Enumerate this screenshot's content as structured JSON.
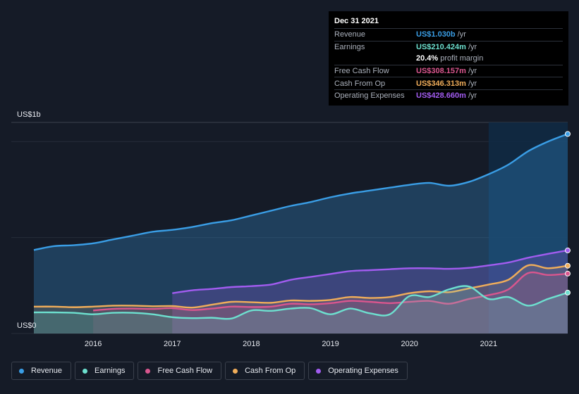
{
  "tooltip": {
    "date": "Dec 31 2021",
    "rows": [
      {
        "label": "Revenue",
        "value": "US$1.030b",
        "unit": "/yr",
        "color": "#3a9ee6"
      },
      {
        "label": "Earnings",
        "value": "US$210.424m",
        "unit": "/yr",
        "color": "#6de0cf"
      },
      {
        "label": "",
        "value": "20.4%",
        "unit": "profit margin",
        "color": "#ffffff"
      },
      {
        "label": "Free Cash Flow",
        "value": "US$308.157m",
        "unit": "/yr",
        "color": "#d9568e"
      },
      {
        "label": "Cash From Op",
        "value": "US$346.313m",
        "unit": "/yr",
        "color": "#f0ad5a"
      },
      {
        "label": "Operating Expenses",
        "value": "US$428.660m",
        "unit": "/yr",
        "color": "#a25cf0"
      }
    ]
  },
  "legend": [
    {
      "label": "Revenue",
      "color": "#3a9ee6"
    },
    {
      "label": "Earnings",
      "color": "#6de0cf"
    },
    {
      "label": "Free Cash Flow",
      "color": "#d9568e"
    },
    {
      "label": "Cash From Op",
      "color": "#f0ad5a"
    },
    {
      "label": "Operating Expenses",
      "color": "#a25cf0"
    }
  ],
  "chart_data": {
    "type": "area",
    "y_axis_top_label": "US$1b",
    "y_axis_bottom_label": "US$0",
    "ylim": [
      0,
      1.1
    ],
    "xlim": [
      2015.25,
      2022.0
    ],
    "x_ticks": [
      2016,
      2017,
      2018,
      2019,
      2020,
      2021
    ],
    "x_tick_labels": [
      "2016",
      "2017",
      "2018",
      "2019",
      "2020",
      "2021"
    ],
    "highlight_from": 2021.0,
    "series": [
      {
        "name": "Revenue",
        "color": "#3a9ee6",
        "fill": true,
        "x": [
          2015.25,
          2015.5,
          2015.75,
          2016.0,
          2016.25,
          2016.5,
          2016.75,
          2017.0,
          2017.25,
          2017.5,
          2017.75,
          2018.0,
          2018.25,
          2018.5,
          2018.75,
          2019.0,
          2019.25,
          2019.5,
          2019.75,
          2020.0,
          2020.25,
          2020.5,
          2020.75,
          2021.0,
          2021.25,
          2021.5,
          2021.75,
          2022.0
        ],
        "y": [
          0.435,
          0.455,
          0.46,
          0.47,
          0.49,
          0.51,
          0.53,
          0.54,
          0.555,
          0.575,
          0.59,
          0.615,
          0.64,
          0.665,
          0.685,
          0.71,
          0.73,
          0.745,
          0.76,
          0.775,
          0.785,
          0.77,
          0.79,
          0.83,
          0.88,
          0.95,
          1.0,
          1.04
        ]
      },
      {
        "name": "Operating Expenses",
        "color": "#a25cf0",
        "fill": true,
        "x": [
          2017.0,
          2017.25,
          2017.5,
          2017.75,
          2018.0,
          2018.25,
          2018.5,
          2018.75,
          2019.0,
          2019.25,
          2019.5,
          2019.75,
          2020.0,
          2020.25,
          2020.5,
          2020.75,
          2021.0,
          2021.25,
          2021.5,
          2021.75,
          2022.0
        ],
        "y": [
          0.21,
          0.225,
          0.232,
          0.242,
          0.247,
          0.255,
          0.28,
          0.295,
          0.31,
          0.325,
          0.33,
          0.335,
          0.34,
          0.34,
          0.337,
          0.342,
          0.355,
          0.37,
          0.395,
          0.415,
          0.433
        ]
      },
      {
        "name": "Cash From Op",
        "color": "#f0ad5a",
        "fill": true,
        "x": [
          2015.25,
          2015.5,
          2015.75,
          2016.0,
          2016.25,
          2016.5,
          2016.75,
          2017.0,
          2017.25,
          2017.5,
          2017.75,
          2018.0,
          2018.25,
          2018.5,
          2018.75,
          2019.0,
          2019.25,
          2019.5,
          2019.75,
          2020.0,
          2020.25,
          2020.5,
          2020.75,
          2021.0,
          2021.25,
          2021.5,
          2021.75,
          2022.0
        ],
        "y": [
          0.14,
          0.14,
          0.137,
          0.14,
          0.145,
          0.145,
          0.142,
          0.143,
          0.135,
          0.15,
          0.165,
          0.163,
          0.16,
          0.172,
          0.17,
          0.175,
          0.19,
          0.185,
          0.19,
          0.21,
          0.22,
          0.215,
          0.235,
          0.255,
          0.28,
          0.355,
          0.34,
          0.353
        ]
      },
      {
        "name": "Free Cash Flow",
        "color": "#d9568e",
        "fill": true,
        "x": [
          2016.0,
          2016.25,
          2016.5,
          2016.75,
          2017.0,
          2017.25,
          2017.5,
          2017.75,
          2018.0,
          2018.25,
          2018.5,
          2018.75,
          2019.0,
          2019.25,
          2019.5,
          2019.75,
          2020.0,
          2020.25,
          2020.5,
          2020.75,
          2021.0,
          2021.25,
          2021.5,
          2021.75,
          2022.0
        ],
        "y": [
          0.12,
          0.128,
          0.13,
          0.128,
          0.132,
          0.122,
          0.13,
          0.14,
          0.138,
          0.14,
          0.155,
          0.152,
          0.158,
          0.17,
          0.165,
          0.158,
          0.165,
          0.17,
          0.155,
          0.18,
          0.2,
          0.23,
          0.315,
          0.305,
          0.312
        ]
      },
      {
        "name": "Earnings",
        "color": "#6de0cf",
        "fill": true,
        "x": [
          2015.25,
          2015.5,
          2015.75,
          2016.0,
          2016.25,
          2016.5,
          2016.75,
          2017.0,
          2017.25,
          2017.5,
          2017.75,
          2018.0,
          2018.25,
          2018.5,
          2018.75,
          2019.0,
          2019.25,
          2019.5,
          2019.75,
          2020.0,
          2020.25,
          2020.5,
          2020.75,
          2021.0,
          2021.25,
          2021.5,
          2021.75,
          2022.0
        ],
        "y": [
          0.11,
          0.11,
          0.108,
          0.1,
          0.108,
          0.108,
          0.1,
          0.085,
          0.08,
          0.082,
          0.078,
          0.12,
          0.118,
          0.13,
          0.132,
          0.1,
          0.13,
          0.105,
          0.1,
          0.195,
          0.19,
          0.23,
          0.245,
          0.18,
          0.19,
          0.145,
          0.18,
          0.213
        ]
      }
    ]
  }
}
